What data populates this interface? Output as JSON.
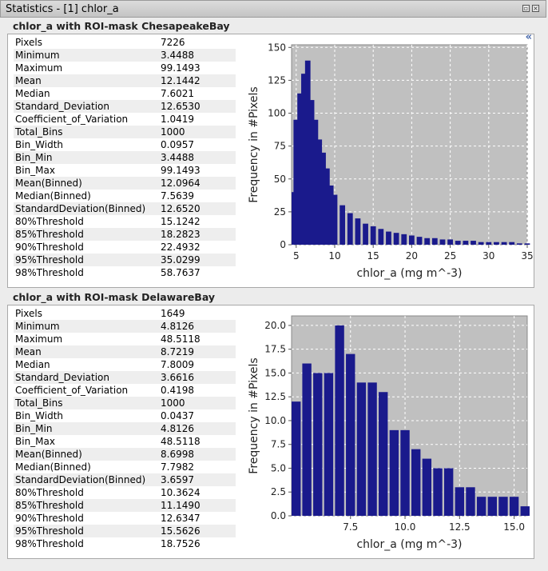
{
  "window": {
    "title": "Statistics - [1] chlor_a"
  },
  "sections": [
    {
      "title": "chlor_a with ROI-mask ChesapeakeBay",
      "stats": [
        {
          "name": "Pixels",
          "value": "7226"
        },
        {
          "name": "Minimum",
          "value": "3.4488"
        },
        {
          "name": "Maximum",
          "value": "99.1493"
        },
        {
          "name": "Mean",
          "value": "12.1442"
        },
        {
          "name": "Median",
          "value": "7.6021"
        },
        {
          "name": "Standard_Deviation",
          "value": "12.6530"
        },
        {
          "name": "Coefficient_of_Variation",
          "value": "1.0419"
        },
        {
          "name": "Total_Bins",
          "value": "1000"
        },
        {
          "name": "Bin_Width",
          "value": "0.0957"
        },
        {
          "name": "Bin_Min",
          "value": "3.4488"
        },
        {
          "name": "Bin_Max",
          "value": "99.1493"
        },
        {
          "name": "Mean(Binned)",
          "value": "12.0964"
        },
        {
          "name": "Median(Binned)",
          "value": "7.5639"
        },
        {
          "name": "StandardDeviation(Binned)",
          "value": "12.6520"
        },
        {
          "name": "80%Threshold",
          "value": "15.1242"
        },
        {
          "name": "85%Threshold",
          "value": "18.2823"
        },
        {
          "name": "90%Threshold",
          "value": "22.4932"
        },
        {
          "name": "95%Threshold",
          "value": "35.0299"
        },
        {
          "name": "98%Threshold",
          "value": "58.7637"
        }
      ]
    },
    {
      "title": "chlor_a with ROI-mask DelawareBay",
      "stats": [
        {
          "name": "Pixels",
          "value": "1649"
        },
        {
          "name": "Minimum",
          "value": "4.8126"
        },
        {
          "name": "Maximum",
          "value": "48.5118"
        },
        {
          "name": "Mean",
          "value": "8.7219"
        },
        {
          "name": "Median",
          "value": "7.8009"
        },
        {
          "name": "Standard_Deviation",
          "value": "3.6616"
        },
        {
          "name": "Coefficient_of_Variation",
          "value": "0.4198"
        },
        {
          "name": "Total_Bins",
          "value": "1000"
        },
        {
          "name": "Bin_Width",
          "value": "0.0437"
        },
        {
          "name": "Bin_Min",
          "value": "4.8126"
        },
        {
          "name": "Bin_Max",
          "value": "48.5118"
        },
        {
          "name": "Mean(Binned)",
          "value": "8.6998"
        },
        {
          "name": "Median(Binned)",
          "value": "7.7982"
        },
        {
          "name": "StandardDeviation(Binned)",
          "value": "3.6597"
        },
        {
          "name": "80%Threshold",
          "value": "10.3624"
        },
        {
          "name": "85%Threshold",
          "value": "11.1490"
        },
        {
          "name": "90%Threshold",
          "value": "12.6347"
        },
        {
          "name": "95%Threshold",
          "value": "15.5626"
        },
        {
          "name": "98%Threshold",
          "value": "18.7526"
        }
      ]
    }
  ],
  "collapse_icon": "double-chevron-left-icon",
  "colors": {
    "bar": "#1a1a8c",
    "plot_bg": "#c0c0c0",
    "grid": "#ffffff"
  },
  "chart_data": [
    {
      "type": "bar",
      "xlabel": "chlor_a (mg m^-3)",
      "ylabel": "Frequency in #Pixels",
      "xlim": [
        4.4,
        35
      ],
      "ylim": [
        0,
        152
      ],
      "xticks": [
        "5",
        "10",
        "15",
        "20",
        "25",
        "30",
        "35"
      ],
      "yticks": [
        "0",
        "25",
        "50",
        "75",
        "100",
        "125",
        "150"
      ],
      "grid": true,
      "x": [
        4.5,
        5.0,
        5.5,
        6.0,
        6.5,
        7.0,
        7.5,
        8.0,
        8.5,
        9.0,
        9.5,
        10,
        11,
        12,
        13,
        14,
        15,
        16,
        17,
        18,
        19,
        20,
        21,
        22,
        23,
        24,
        25,
        26,
        27,
        28,
        29,
        30,
        31,
        32,
        33,
        34,
        35
      ],
      "values": [
        40,
        95,
        115,
        130,
        140,
        110,
        95,
        80,
        70,
        58,
        45,
        38,
        30,
        24,
        20,
        16,
        14,
        12,
        10,
        9,
        8,
        7,
        6,
        5,
        5,
        4,
        4,
        3,
        3,
        3,
        2,
        2,
        2,
        2,
        2,
        1,
        1
      ]
    },
    {
      "type": "bar",
      "xlabel": "chlor_a (mg m^-3)",
      "ylabel": "Frequency in #Pixels",
      "xlim": [
        4.8,
        15.6
      ],
      "ylim": [
        0,
        21
      ],
      "xticks": [
        "7.5",
        "10.0",
        "12.5",
        "15.0"
      ],
      "yticks": [
        "0.0",
        "2.5",
        "5.0",
        "7.5",
        "10.0",
        "12.5",
        "15.0",
        "17.5",
        "20.0"
      ],
      "grid": true,
      "x": [
        5.0,
        5.5,
        6.0,
        6.5,
        7.0,
        7.5,
        8.0,
        8.5,
        9.0,
        9.5,
        10.0,
        10.5,
        11.0,
        11.5,
        12.0,
        12.5,
        13.0,
        13.5,
        14.0,
        14.5,
        15.0,
        15.5
      ],
      "values": [
        12,
        16,
        15,
        15,
        20,
        17,
        14,
        14,
        13,
        9,
        9,
        7,
        6,
        5,
        5,
        3,
        3,
        2,
        2,
        2,
        2,
        1
      ]
    }
  ]
}
